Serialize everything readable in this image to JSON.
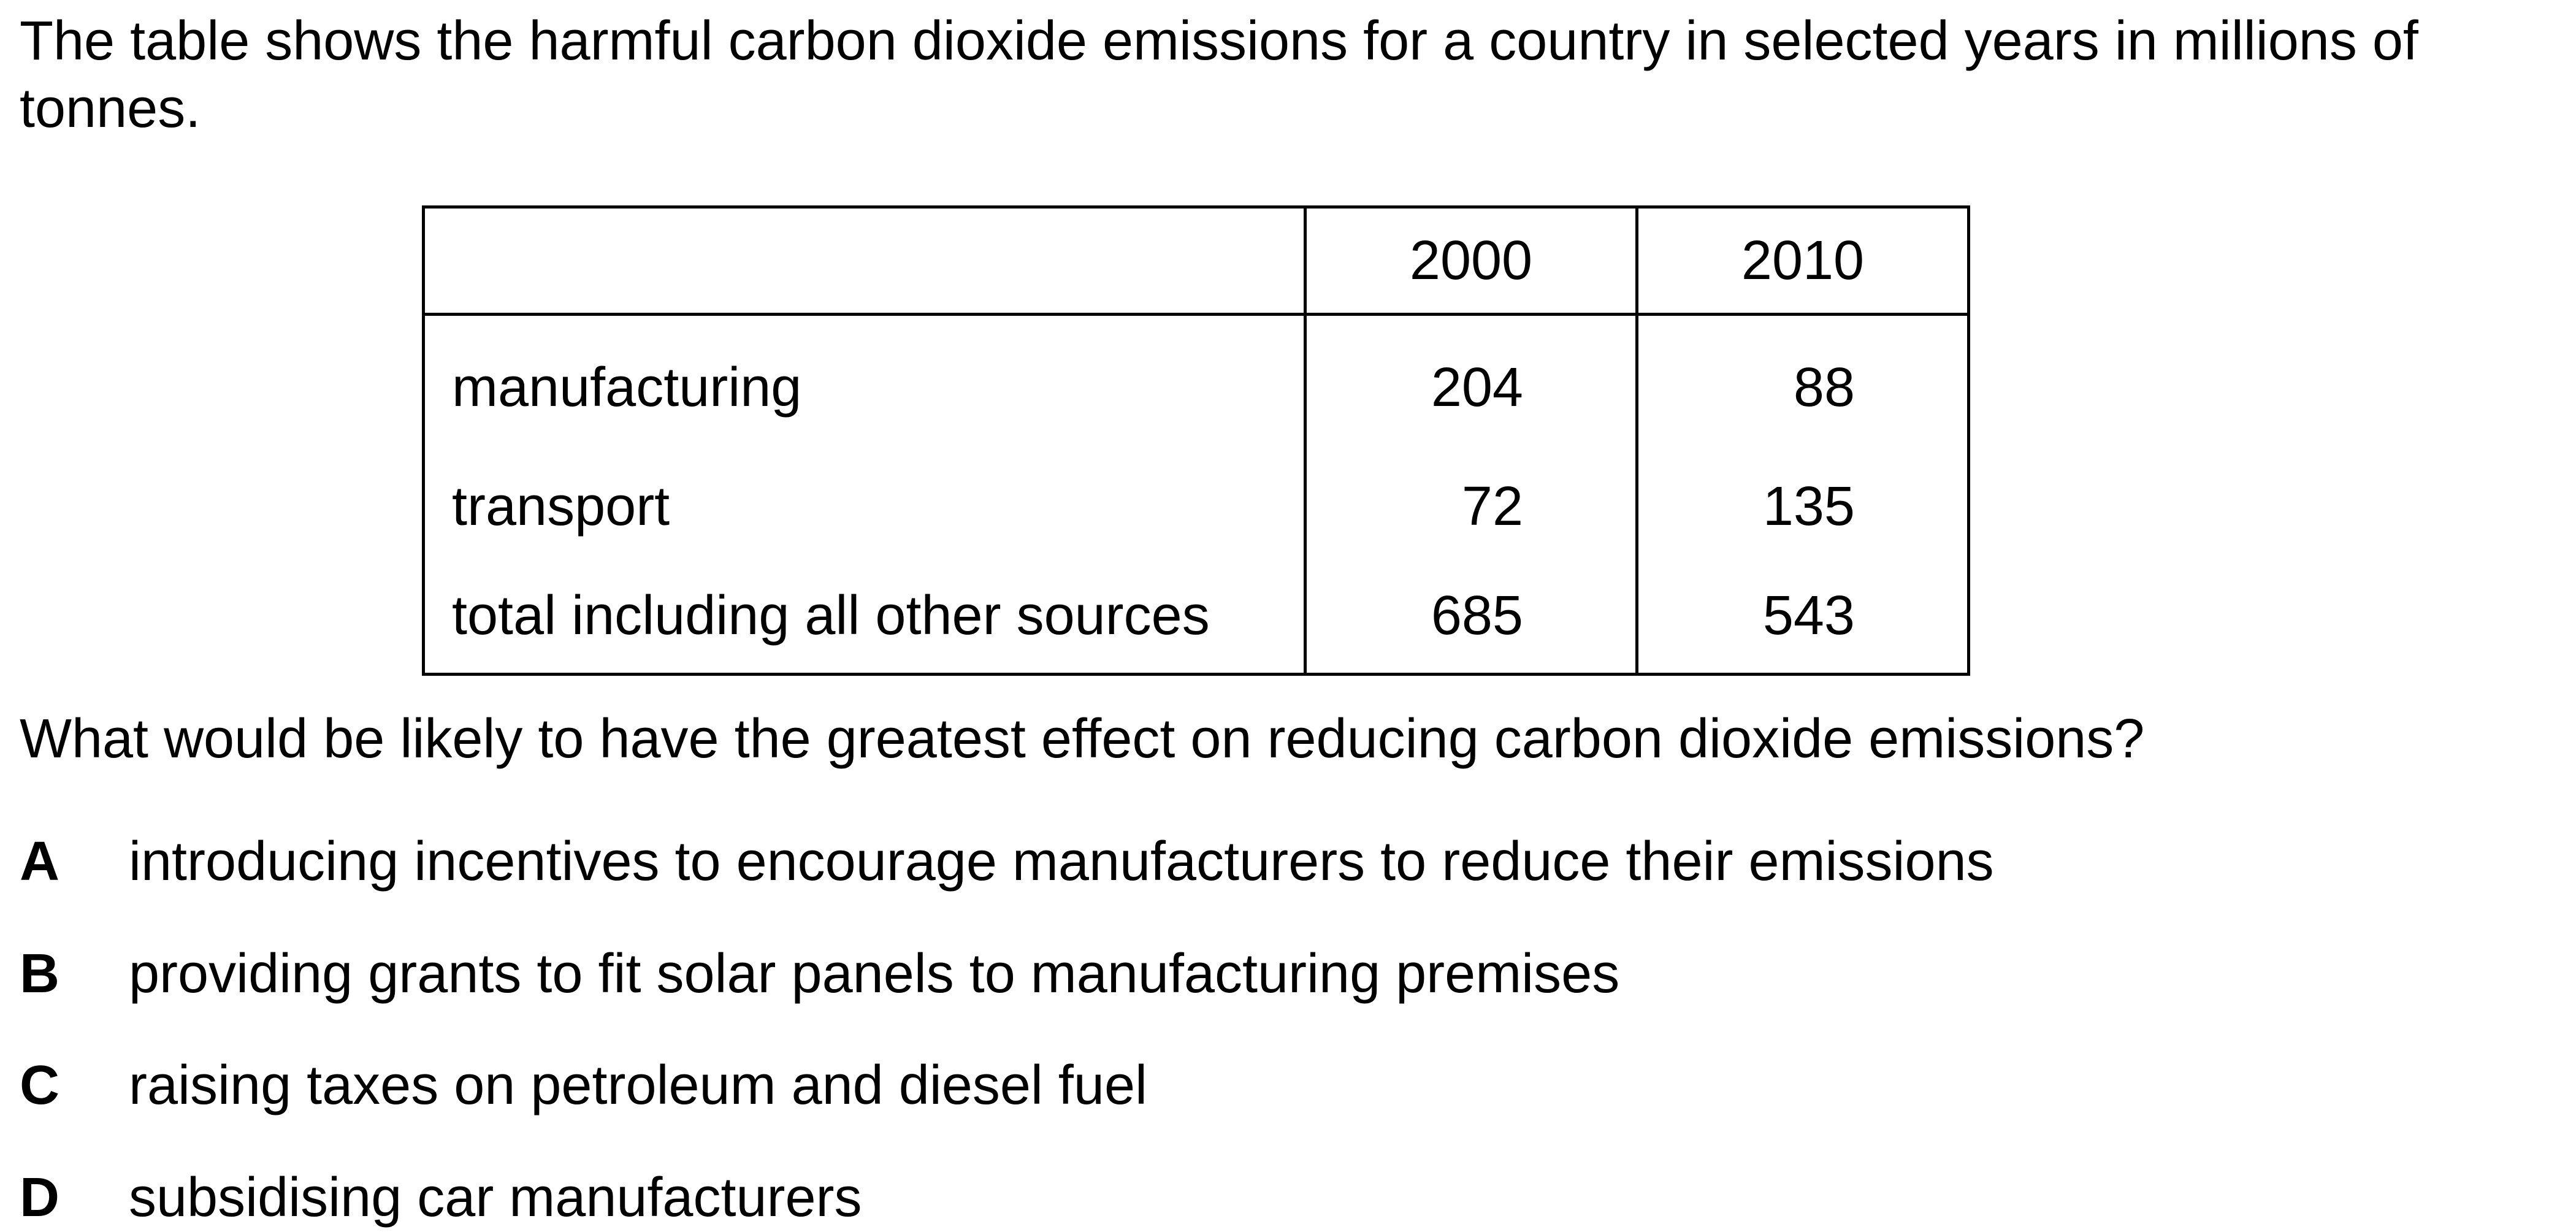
{
  "intro": "The table shows the harmful carbon dioxide emissions for a country in selected years in millions of tonnes.",
  "table": {
    "headers": [
      "",
      "2000",
      "2010"
    ],
    "rows": [
      {
        "label": "manufacturing",
        "v2000": "204",
        "v2010": "88"
      },
      {
        "label": "transport",
        "v2000": "72",
        "v2010": "135"
      },
      {
        "label": "total including all other sources",
        "v2000": "685",
        "v2010": "543"
      }
    ]
  },
  "question": "What would be likely to have the greatest effect on reducing carbon dioxide emissions?",
  "options": [
    {
      "letter": "A",
      "text": "introducing incentives to encourage manufacturers to reduce their emissions"
    },
    {
      "letter": "B",
      "text": "providing grants to fit solar panels to manufacturing premises"
    },
    {
      "letter": "C",
      "text": "raising taxes on petroleum and diesel fuel"
    },
    {
      "letter": "D",
      "text": "subsidising car manufacturers"
    }
  ]
}
